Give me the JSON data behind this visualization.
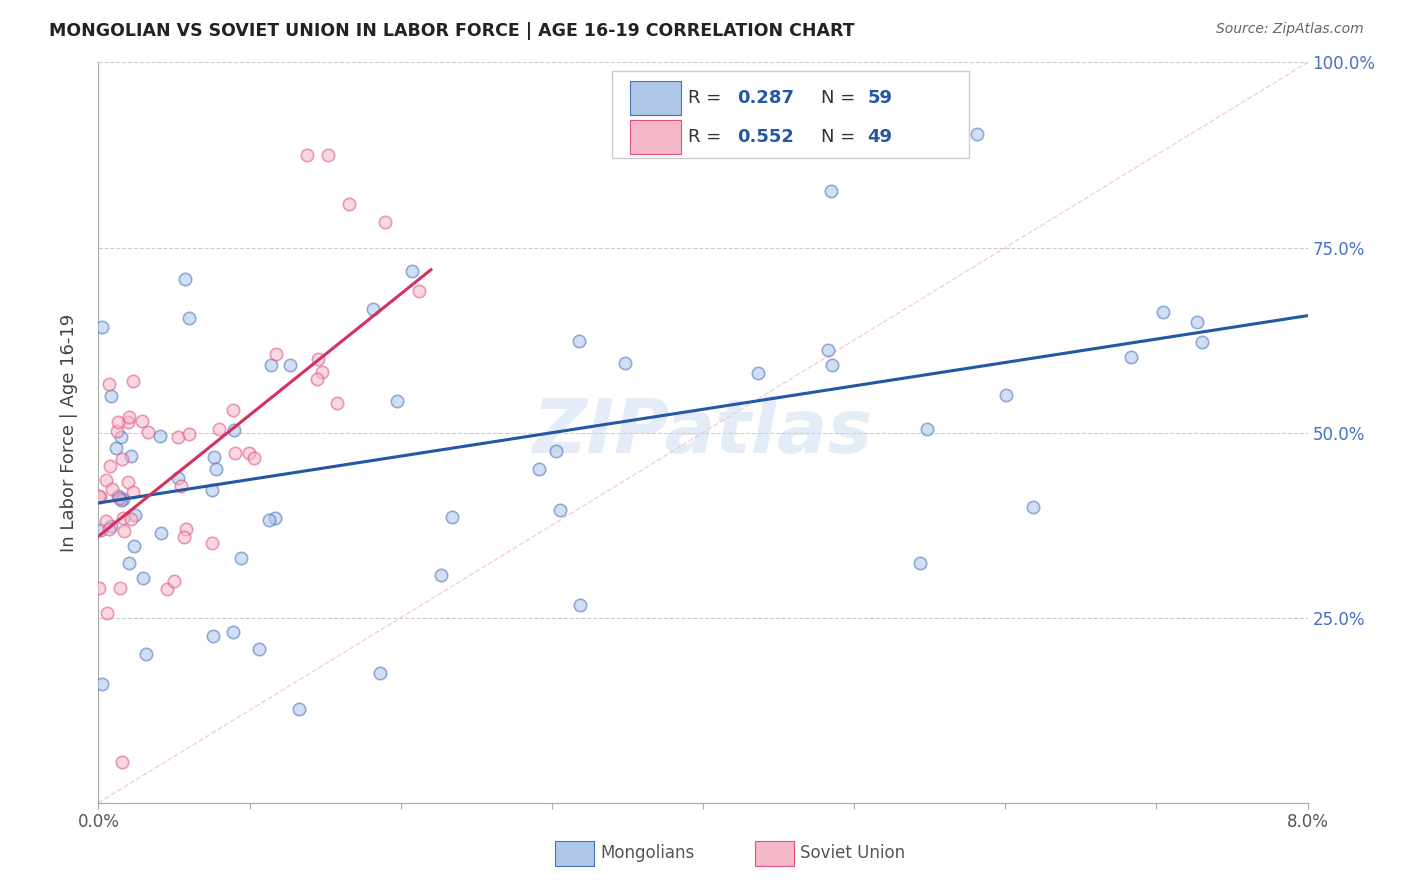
{
  "title": "MONGOLIAN VS SOVIET UNION IN LABOR FORCE | AGE 16-19 CORRELATION CHART",
  "source": "Source: ZipAtlas.com",
  "ylabel": "In Labor Force | Age 16-19",
  "xlim": [
    0.0,
    0.08
  ],
  "ylim": [
    0.0,
    1.0
  ],
  "watermark": "ZIPatlas",
  "blue_fill": "#aec6e8",
  "blue_edge": "#4472C4",
  "pink_fill": "#f4b8c8",
  "pink_edge": "#e05080",
  "blue_line_color": "#2457a4",
  "pink_line_color": "#d63060",
  "diag_color": "#f4b8c8",
  "scatter_alpha": 0.55,
  "scatter_size": 80,
  "right_tick_color": "#4472C4",
  "title_color": "#222222",
  "source_color": "#666666",
  "grid_color": "#cccccc",
  "blue_trend_x0": 0.0,
  "blue_trend_y0": 0.405,
  "blue_trend_x1": 0.08,
  "blue_trend_y1": 0.658,
  "pink_trend_x0": 0.0,
  "pink_trend_y0": 0.36,
  "pink_trend_x1": 0.022,
  "pink_trend_y1": 0.72
}
